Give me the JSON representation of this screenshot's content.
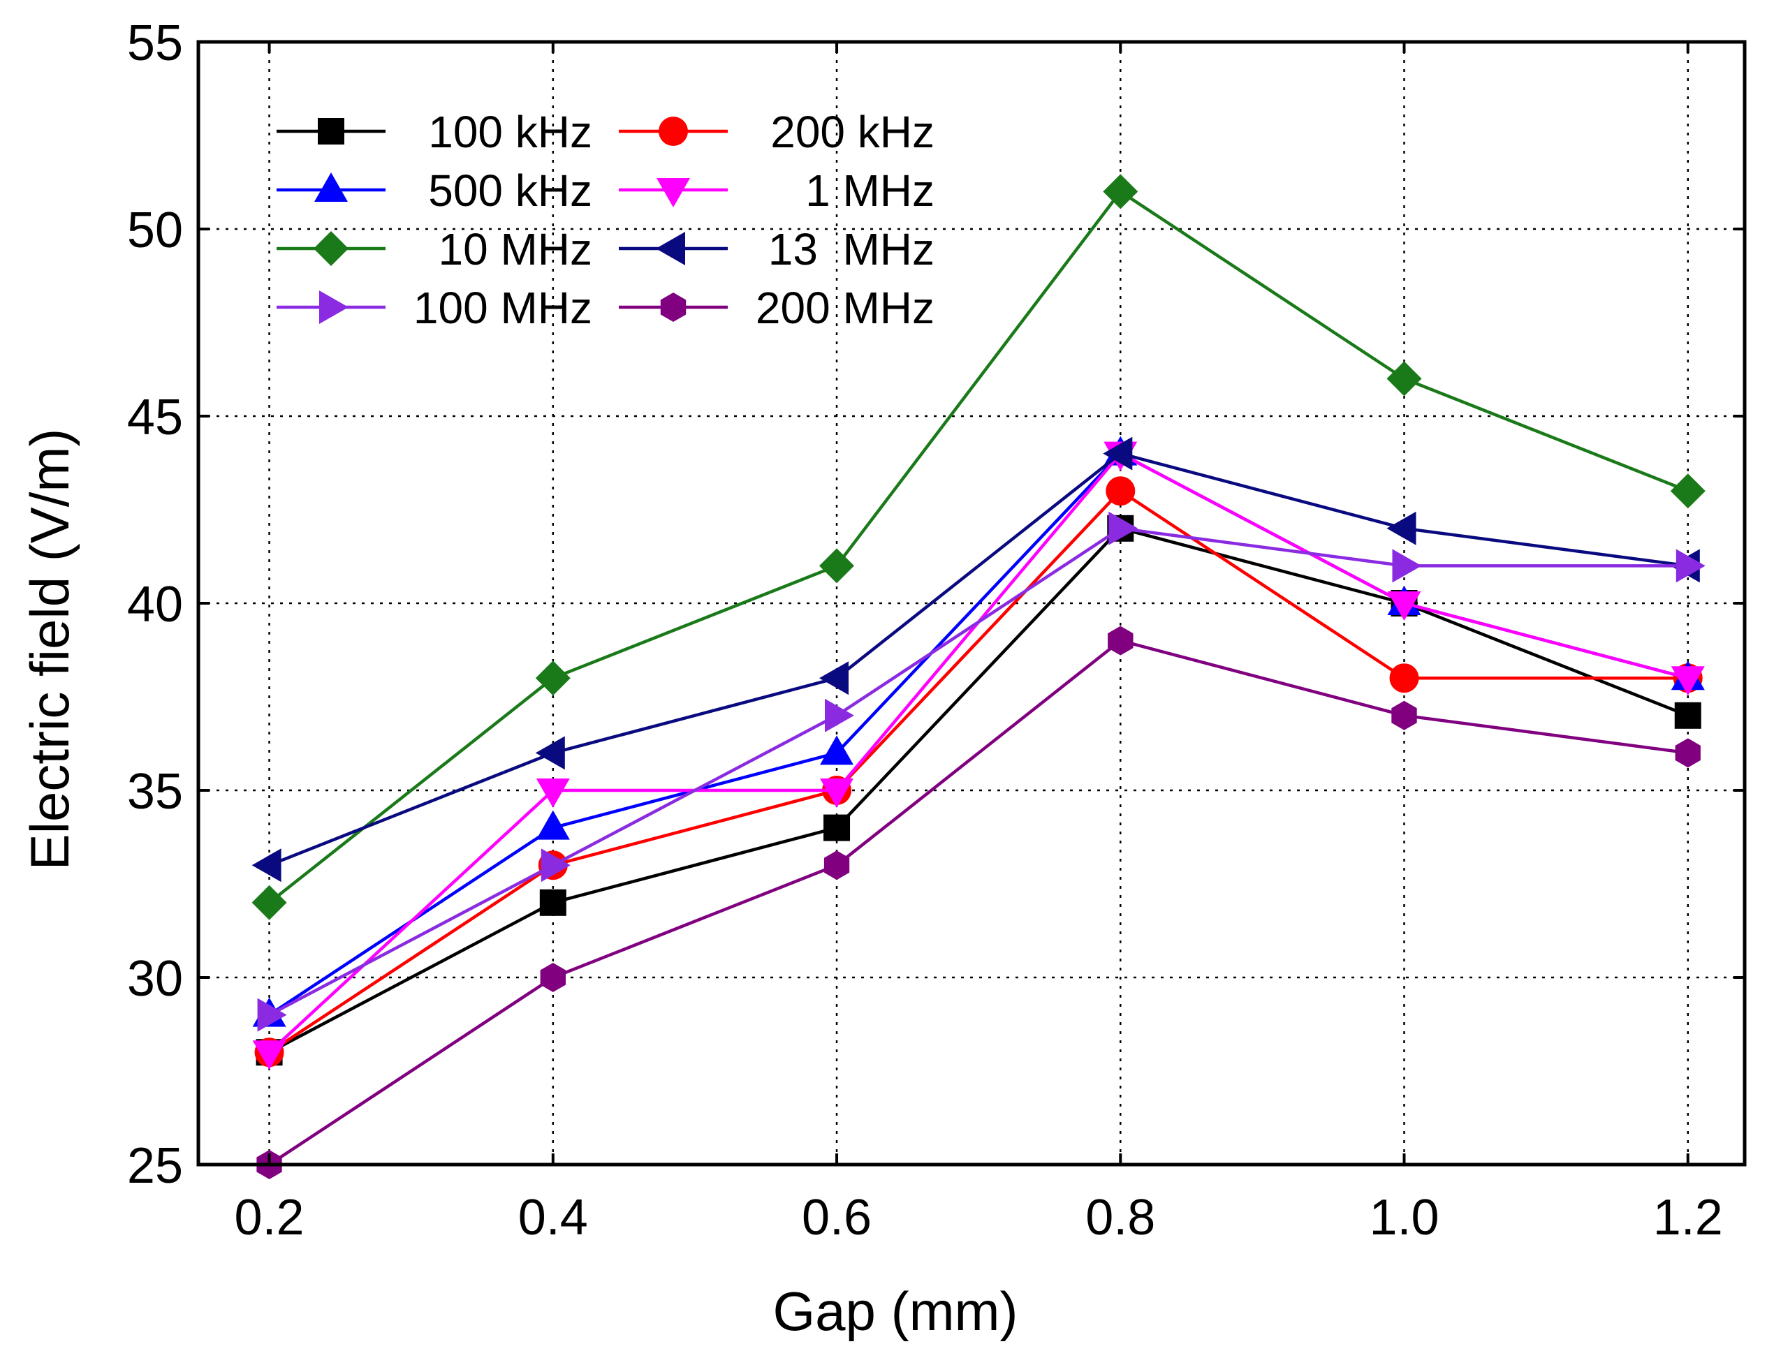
{
  "chart_data": {
    "type": "line",
    "title": "",
    "xlabel": "Gap (mm)",
    "ylabel": "Electric field (V/m)",
    "x": [
      0.2,
      0.4,
      0.6,
      0.8,
      1.0,
      1.2
    ],
    "x_tick_labels": [
      "0.2",
      "0.4",
      "0.6",
      "0.8",
      "1.0",
      "1.2"
    ],
    "xlim": [
      0.15,
      1.24
    ],
    "ylim": [
      25,
      55
    ],
    "y_ticks": [
      25,
      30,
      35,
      40,
      45,
      50,
      55
    ],
    "y_tick_labels": [
      "25",
      "30",
      "35",
      "40",
      "45",
      "50",
      "55"
    ],
    "grid": true,
    "legend_position": "top-left",
    "legend_columns": 2,
    "series": [
      {
        "name": "100 kHz",
        "color": "#000000",
        "marker": "square",
        "values": [
          28,
          32,
          34,
          42,
          40,
          37
        ]
      },
      {
        "name": "200 kHz",
        "color": "#ff0000",
        "marker": "circle",
        "values": [
          28,
          33,
          35,
          43,
          38,
          38
        ]
      },
      {
        "name": "500 kHz",
        "color": "#0000ff",
        "marker": "triangle-up",
        "values": [
          29,
          34,
          36,
          44,
          40,
          38
        ]
      },
      {
        "name": "1 MHz",
        "color": "#ff00ff",
        "marker": "triangle-down",
        "values": [
          28,
          35,
          35,
          44,
          40,
          38
        ]
      },
      {
        "name": "10 MHz",
        "color": "#1a7a1a",
        "marker": "diamond",
        "values": [
          32,
          38,
          41,
          51,
          46,
          43
        ]
      },
      {
        "name": "13  MHz",
        "color": "#0a0a80",
        "marker": "triangle-left",
        "values": [
          33,
          36,
          38,
          44,
          42,
          41
        ]
      },
      {
        "name": "100 MHz",
        "color": "#8a2be2",
        "marker": "triangle-right",
        "values": [
          29,
          33,
          37,
          42,
          41,
          41
        ]
      },
      {
        "name": "200 MHz",
        "color": "#800080",
        "marker": "hexagon",
        "values": [
          25,
          30,
          33,
          39,
          37,
          36
        ]
      }
    ]
  }
}
